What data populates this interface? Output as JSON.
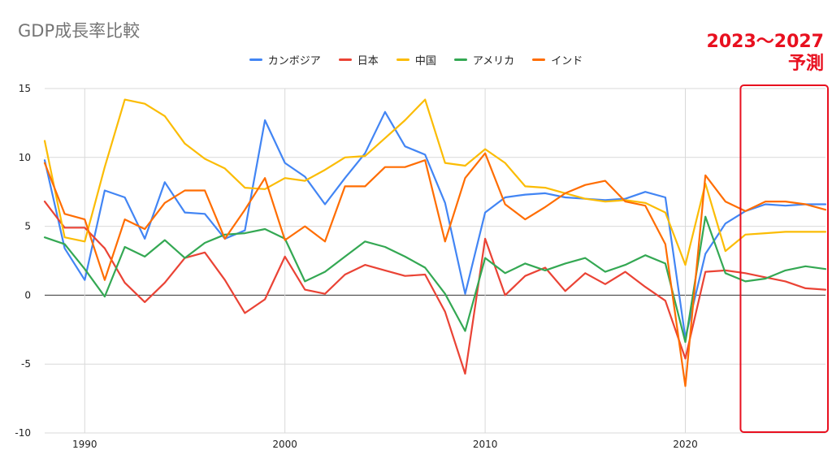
{
  "chart_data": {
    "type": "line",
    "title": "GDP成長率比較",
    "xlabel": "",
    "ylabel": "",
    "x": [
      1988,
      1989,
      1990,
      1991,
      1992,
      1993,
      1994,
      1995,
      1996,
      1997,
      1998,
      1999,
      2000,
      2001,
      2002,
      2003,
      2004,
      2005,
      2006,
      2007,
      2008,
      2009,
      2010,
      2011,
      2012,
      2013,
      2014,
      2015,
      2016,
      2017,
      2018,
      2019,
      2020,
      2021,
      2022,
      2023,
      2024,
      2025,
      2026,
      2027
    ],
    "xlim": [
      1988,
      2027
    ],
    "ylim": [
      -10,
      15
    ],
    "x_ticks": [
      "1990",
      "2000",
      "2010",
      "2020"
    ],
    "x_tick_values": [
      1990,
      2000,
      2010,
      2020
    ],
    "y_ticks": [
      "15",
      "10",
      "5",
      "0",
      "-5",
      "-10"
    ],
    "y_tick_values": [
      15,
      10,
      5,
      0,
      -5,
      -10
    ],
    "grid": true,
    "legend_position": "top",
    "series": [
      {
        "name": "カンボジア",
        "color": "#4285f4",
        "values": [
          9.8,
          3.4,
          1.1,
          7.6,
          7.1,
          4.1,
          8.2,
          6.0,
          5.9,
          4.1,
          4.7,
          12.7,
          9.6,
          8.6,
          6.6,
          8.5,
          10.3,
          13.3,
          10.8,
          10.2,
          6.7,
          0.1,
          6.0,
          7.1,
          7.3,
          7.4,
          7.1,
          7.0,
          6.9,
          7.0,
          7.5,
          7.1,
          -3.1,
          3.0,
          5.2,
          6.1,
          6.6,
          6.5,
          6.6,
          6.6
        ]
      },
      {
        "name": "日本",
        "color": "#ea4335",
        "values": [
          6.8,
          4.9,
          4.9,
          3.4,
          0.9,
          -0.5,
          0.9,
          2.7,
          3.1,
          1.1,
          -1.3,
          -0.3,
          2.8,
          0.4,
          0.1,
          1.5,
          2.2,
          1.8,
          1.4,
          1.5,
          -1.2,
          -5.7,
          4.1,
          0.0,
          1.4,
          2.0,
          0.3,
          1.6,
          0.8,
          1.7,
          0.6,
          -0.4,
          -4.6,
          1.7,
          1.8,
          1.6,
          1.3,
          1.0,
          0.5,
          0.4
        ]
      },
      {
        "name": "中国",
        "color": "#fbbc04",
        "values": [
          11.2,
          4.2,
          3.9,
          9.3,
          14.2,
          13.9,
          13.0,
          11.0,
          9.9,
          9.2,
          7.8,
          7.7,
          8.5,
          8.3,
          9.1,
          10.0,
          10.1,
          11.4,
          12.7,
          14.2,
          9.6,
          9.4,
          10.6,
          9.6,
          7.9,
          7.8,
          7.4,
          7.0,
          6.8,
          6.9,
          6.7,
          6.0,
          2.2,
          8.1,
          3.2,
          4.4,
          4.5,
          4.6,
          4.6,
          4.6
        ]
      },
      {
        "name": "アメリカ",
        "color": "#34a853",
        "values": [
          4.2,
          3.7,
          1.9,
          -0.1,
          3.5,
          2.8,
          4.0,
          2.7,
          3.8,
          4.4,
          4.5,
          4.8,
          4.1,
          1.0,
          1.7,
          2.8,
          3.9,
          3.5,
          2.8,
          2.0,
          0.1,
          -2.6,
          2.7,
          1.6,
          2.3,
          1.8,
          2.3,
          2.7,
          1.7,
          2.2,
          2.9,
          2.3,
          -3.4,
          5.7,
          1.6,
          1.0,
          1.2,
          1.8,
          2.1,
          1.9
        ]
      },
      {
        "name": "インド",
        "color": "#ff6d01",
        "values": [
          9.6,
          5.9,
          5.5,
          1.1,
          5.5,
          4.8,
          6.7,
          7.6,
          7.6,
          4.1,
          6.2,
          8.5,
          4.0,
          5.0,
          3.9,
          7.9,
          7.9,
          9.3,
          9.3,
          9.8,
          3.9,
          8.5,
          10.3,
          6.6,
          5.5,
          6.4,
          7.4,
          8.0,
          8.3,
          6.8,
          6.5,
          3.7,
          -6.6,
          8.7,
          6.8,
          6.1,
          6.8,
          6.8,
          6.6,
          6.2
        ]
      }
    ],
    "forecast_label": [
      "2023～2027",
      "予測"
    ],
    "forecast_range": [
      2023,
      2027
    ]
  }
}
